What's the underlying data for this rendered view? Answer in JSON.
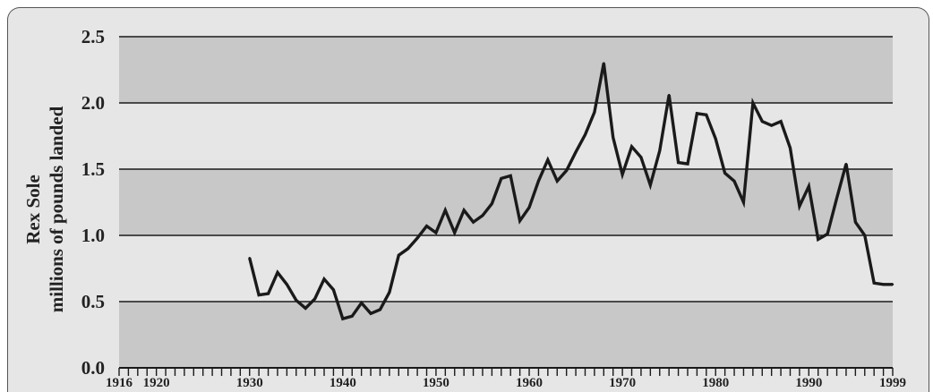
{
  "chart_data": {
    "type": "line",
    "title": "",
    "ylabel_lines": [
      "Rex Sole",
      "millions of pounds landed"
    ],
    "xlabel": "",
    "xlim": [
      1916,
      1999
    ],
    "ylim": [
      0,
      2.5
    ],
    "x_ticks": [
      1916,
      1920,
      1930,
      1940,
      1950,
      1960,
      1970,
      1980,
      1990,
      1999
    ],
    "y_ticks": [
      "0.0",
      "0.5",
      "1.0",
      "1.5",
      "2.0",
      "2.5"
    ],
    "grid": true,
    "band_colors": [
      "#c8c8c8",
      "#e6e6e6"
    ],
    "line_color": "#1a1a1a",
    "series": [
      {
        "name": "",
        "x": [
          1930,
          1931,
          1932,
          1933,
          1934,
          1935,
          1936,
          1937,
          1938,
          1939,
          1940,
          1941,
          1942,
          1943,
          1944,
          1945,
          1946,
          1947,
          1948,
          1949,
          1950,
          1951,
          1952,
          1953,
          1954,
          1955,
          1956,
          1957,
          1958,
          1959,
          1960,
          1961,
          1962,
          1963,
          1964,
          1965,
          1966,
          1967,
          1968,
          1969,
          1970,
          1971,
          1972,
          1973,
          1974,
          1975,
          1976,
          1977,
          1978,
          1979,
          1980,
          1981,
          1982,
          1983,
          1984,
          1985,
          1986,
          1987,
          1988,
          1989,
          1990,
          1991,
          1992,
          1993,
          1994,
          1995,
          1996,
          1997,
          1998,
          1999
        ],
        "y": [
          0.83,
          0.55,
          0.56,
          0.72,
          0.63,
          0.51,
          0.45,
          0.52,
          0.67,
          0.59,
          0.37,
          0.39,
          0.49,
          0.41,
          0.44,
          0.57,
          0.85,
          0.9,
          0.98,
          1.07,
          1.02,
          1.19,
          1.02,
          1.19,
          1.1,
          1.15,
          1.24,
          1.43,
          1.45,
          1.11,
          1.21,
          1.41,
          1.57,
          1.41,
          1.49,
          1.63,
          1.76,
          1.93,
          2.3,
          1.74,
          1.46,
          1.67,
          1.59,
          1.38,
          1.64,
          2.06,
          1.55,
          1.54,
          1.92,
          1.91,
          1.73,
          1.47,
          1.41,
          1.25,
          2.0,
          1.86,
          1.83,
          1.86,
          1.66,
          1.22,
          1.37,
          0.97,
          1.01,
          1.28,
          1.54,
          1.1,
          1.0,
          0.64,
          0.63,
          0.63
        ]
      }
    ]
  }
}
